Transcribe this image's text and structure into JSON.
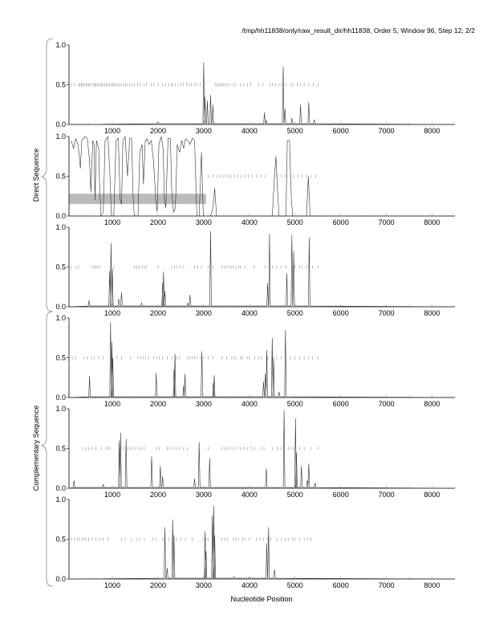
{
  "title": "/tmp/hh11838/only/raw_result_dir/hh11838, Order 5, Window 96, Step 12, 2/2",
  "group_labels": {
    "direct": "Direct Sequence",
    "complementary": "Complementary Sequence"
  },
  "chart_data": [
    {
      "type": "line",
      "xlim": [
        50,
        8500
      ],
      "ylim": [
        0,
        1
      ],
      "yticks": [
        "0.0",
        "0.5",
        "1.0"
      ],
      "xticks": [
        "1000",
        "2000",
        "3000",
        "4000",
        "5000",
        "6000",
        "7000",
        "8000"
      ],
      "peaks": [
        [
          1990,
          0.03
        ],
        [
          3000,
          0.78
        ],
        [
          3030,
          0.35
        ],
        [
          3080,
          0.3
        ],
        [
          3150,
          0.37
        ],
        [
          3200,
          0.25
        ],
        [
          4330,
          0.15
        ],
        [
          4370,
          0.05
        ],
        [
          4740,
          0.73
        ],
        [
          4780,
          0.2
        ],
        [
          4930,
          0.08
        ],
        [
          5120,
          0.25
        ],
        [
          5300,
          0.28
        ],
        [
          5420,
          0.06
        ]
      ],
      "orf_marks": [
        100,
        160,
        260,
        290,
        320,
        340,
        380,
        420,
        450,
        480,
        510,
        560,
        600,
        620,
        650,
        690,
        730,
        760,
        790,
        830,
        870,
        900,
        940,
        980,
        1010,
        1040,
        1080,
        1120,
        1160,
        1200,
        1250,
        1290,
        1330,
        1380,
        1430,
        1480,
        1550,
        1600,
        1700,
        1750,
        1850,
        1900,
        2000,
        2100,
        2170,
        2230,
        2290,
        2320,
        2380,
        2440,
        2500,
        2550,
        2620,
        2680,
        2730,
        2800,
        2850,
        2920,
        3250,
        3290,
        3330,
        3360,
        3400,
        3430,
        3470,
        3520,
        3580,
        3650,
        3700,
        3800,
        3870,
        3960,
        4030,
        4200,
        4300,
        4450,
        4500,
        4570,
        4650,
        4700,
        4800,
        4900,
        4950,
        5050,
        5120,
        5200,
        5300,
        5400,
        5500
      ]
    },
    {
      "type": "line",
      "xlim": [
        50,
        8500
      ],
      "ylim": [
        0,
        1
      ],
      "yticks": [
        "0.0",
        "0.5",
        "1.0"
      ],
      "xticks": [
        "1000",
        "2000",
        "3000",
        "4000",
        "5000",
        "6000",
        "7000",
        "8000"
      ],
      "highlight": {
        "x": [
          50,
          3050
        ],
        "y": [
          0.15,
          0.28
        ],
        "color": "#bbbbbb"
      },
      "points": [
        [
          100,
          0.95
        ],
        [
          150,
          0.85
        ],
        [
          200,
          0.97
        ],
        [
          250,
          0.9
        ],
        [
          300,
          0.6
        ],
        [
          330,
          0.95
        ],
        [
          400,
          1.0
        ],
        [
          450,
          0.98
        ],
        [
          500,
          0.7
        ],
        [
          530,
          0.3
        ],
        [
          570,
          0.95
        ],
        [
          600,
          0.9
        ],
        [
          620,
          0.2
        ],
        [
          650,
          0.95
        ],
        [
          700,
          0.85
        ],
        [
          720,
          0.4
        ],
        [
          750,
          0.0
        ],
        [
          800,
          0.05
        ],
        [
          840,
          0.95
        ],
        [
          900,
          1.0
        ],
        [
          940,
          0.6
        ],
        [
          980,
          0.0
        ],
        [
          1030,
          0.0
        ],
        [
          1080,
          0.95
        ],
        [
          1130,
          0.98
        ],
        [
          1170,
          0.2
        ],
        [
          1200,
          0.15
        ],
        [
          1230,
          0.95
        ],
        [
          1280,
          1.0
        ],
        [
          1330,
          0.5
        ],
        [
          1380,
          0.98
        ],
        [
          1420,
          0.98
        ],
        [
          1450,
          0.3
        ],
        [
          1480,
          0.0
        ],
        [
          1560,
          0.0
        ],
        [
          1600,
          0.8
        ],
        [
          1650,
          0.9
        ],
        [
          1680,
          0.4
        ],
        [
          1720,
          0.95
        ],
        [
          1760,
          0.97
        ],
        [
          1800,
          0.9
        ],
        [
          1850,
          0.95
        ],
        [
          1900,
          0.7
        ],
        [
          1950,
          0.2
        ],
        [
          1980,
          0.05
        ],
        [
          2020,
          0.9
        ],
        [
          2070,
          1.0
        ],
        [
          2110,
          0.85
        ],
        [
          2140,
          0.2
        ],
        [
          2170,
          0.1
        ],
        [
          2220,
          0.98
        ],
        [
          2270,
          0.97
        ],
        [
          2300,
          0.3
        ],
        [
          2340,
          0.05
        ],
        [
          2380,
          0.1
        ],
        [
          2420,
          0.9
        ],
        [
          2470,
          0.8
        ],
        [
          2520,
          0.95
        ],
        [
          2560,
          0.85
        ],
        [
          2600,
          0.97
        ],
        [
          2650,
          0.95
        ],
        [
          2700,
          0.9
        ],
        [
          2750,
          0.98
        ],
        [
          2800,
          0.95
        ],
        [
          2850,
          0.0
        ],
        [
          2900,
          0.0
        ],
        [
          2950,
          0.8
        ],
        [
          2990,
          0.0
        ],
        [
          3050,
          0.0
        ],
        [
          3150,
          0.0
        ],
        [
          3200,
          0.1
        ],
        [
          3240,
          0.35
        ],
        [
          3280,
          0.0
        ],
        [
          4500,
          0.0
        ],
        [
          4550,
          0.5
        ],
        [
          4580,
          0.75
        ],
        [
          4620,
          0.3
        ],
        [
          4650,
          0.0
        ],
        [
          4800,
          0.0
        ],
        [
          4830,
          0.95
        ],
        [
          4880,
          0.95
        ],
        [
          4920,
          0.2
        ],
        [
          4950,
          0.0
        ],
        [
          5250,
          0.0
        ],
        [
          5290,
          0.5
        ],
        [
          5330,
          0.0
        ],
        [
          8500,
          0.0
        ]
      ],
      "orf_marks": [
        3100,
        3200,
        3280,
        3350,
        3420,
        3480,
        3550,
        3600,
        3680,
        3750,
        3820,
        3900,
        3980,
        4060,
        4150,
        4250,
        4350,
        4600,
        4700,
        4780,
        4900,
        4970,
        5060,
        5150,
        5250,
        5350,
        5450
      ]
    },
    {
      "type": "line",
      "xlim": [
        50,
        8500
      ],
      "ylim": [
        0,
        1
      ],
      "yticks": [
        "0.0",
        "0.5",
        "1.0"
      ],
      "xticks": [
        "1000",
        "2000",
        "3000",
        "4000",
        "5000",
        "6000",
        "7000",
        "8000"
      ],
      "peaks": [
        [
          490,
          0.08
        ],
        [
          940,
          0.45
        ],
        [
          970,
          0.8
        ],
        [
          1000,
          0.48
        ],
        [
          1140,
          0.1
        ],
        [
          1200,
          0.18
        ],
        [
          1640,
          0.05
        ],
        [
          2100,
          0.3
        ],
        [
          2120,
          0.44
        ],
        [
          2150,
          0.2
        ],
        [
          2650,
          0.05
        ],
        [
          2700,
          0.15
        ],
        [
          3150,
          0.95
        ],
        [
          4400,
          0.3
        ],
        [
          4440,
          0.92
        ],
        [
          4820,
          0.42
        ],
        [
          4930,
          0.9
        ],
        [
          4970,
          0.7
        ],
        [
          5310,
          0.87
        ]
      ],
      "orf_marks": [
        100,
        200,
        260,
        560,
        600,
        640,
        680,
        720,
        1030,
        1480,
        1530,
        1580,
        1650,
        1700,
        1740,
        2000,
        2300,
        2360,
        2420,
        2480,
        2560,
        2800,
        2870,
        2950,
        3100,
        3200,
        3400,
        3460,
        3500,
        3560,
        3600,
        3640,
        3700,
        3760,
        3800,
        3900,
        4100,
        4350,
        4500,
        4600,
        4700,
        4800,
        5000,
        5100,
        5150,
        5250,
        5380,
        5500
      ]
    },
    {
      "type": "line",
      "xlim": [
        50,
        8500
      ],
      "ylim": [
        0,
        1
      ],
      "yticks": [
        "0.0",
        "0.5",
        "1.0"
      ],
      "xticks": [
        "1000",
        "2000",
        "3000",
        "4000",
        "5000",
        "6000",
        "7000",
        "8000"
      ],
      "peaks": [
        [
          500,
          0.27
        ],
        [
          960,
          0.95
        ],
        [
          990,
          0.7
        ],
        [
          1010,
          0.5
        ],
        [
          1960,
          0.31
        ],
        [
          2350,
          0.35
        ],
        [
          2370,
          0.55
        ],
        [
          2560,
          0.15
        ],
        [
          2590,
          0.3
        ],
        [
          2960,
          0.58
        ],
        [
          3210,
          0.18
        ],
        [
          3230,
          0.28
        ],
        [
          4310,
          0.2
        ],
        [
          4350,
          0.3
        ],
        [
          4380,
          0.6
        ],
        [
          4500,
          0.75
        ],
        [
          4530,
          0.5
        ],
        [
          4650,
          0.07
        ],
        [
          4790,
          0.85
        ]
      ],
      "orf_marks": [
        120,
        200,
        380,
        450,
        540,
        600,
        700,
        800,
        1100,
        1200,
        1400,
        1560,
        1620,
        1680,
        1730,
        1800,
        1900,
        1970,
        2030,
        2100,
        2200,
        2300,
        2400,
        2460,
        2650,
        2700,
        2750,
        2800,
        2850,
        2930,
        3000,
        3100,
        3200,
        3400,
        3500,
        3600,
        3650,
        3700,
        3800,
        3850,
        3950,
        4000,
        4120,
        4200,
        4260,
        4400,
        4500,
        4600,
        4700,
        4900,
        5000,
        5100,
        5200,
        5300,
        5380,
        5500
      ]
    },
    {
      "type": "line",
      "xlim": [
        50,
        8500
      ],
      "ylim": [
        0,
        1
      ],
      "yticks": [
        "0.0",
        "0.5",
        "1.0"
      ],
      "xticks": [
        "1000",
        "2000",
        "3000",
        "4000",
        "5000",
        "6000",
        "7000",
        "8000"
      ],
      "peaks": [
        [
          160,
          0.1
        ],
        [
          800,
          0.05
        ],
        [
          1150,
          0.6
        ],
        [
          1180,
          0.7
        ],
        [
          1300,
          0.62
        ],
        [
          1860,
          0.4
        ],
        [
          2050,
          0.28
        ],
        [
          2100,
          0.15
        ],
        [
          2800,
          0.12
        ],
        [
          2900,
          0.58
        ],
        [
          3130,
          0.38
        ],
        [
          4370,
          0.25
        ],
        [
          4760,
          0.98
        ],
        [
          5010,
          0.88
        ],
        [
          5030,
          0.45
        ],
        [
          5140,
          0.28
        ],
        [
          5270,
          0.1
        ],
        [
          5300,
          0.31
        ],
        [
          5440,
          0.07
        ]
      ],
      "orf_marks": [
        350,
        420,
        480,
        560,
        640,
        760,
        860,
        900,
        950,
        1250,
        1340,
        1400,
        1450,
        1510,
        1580,
        1640,
        1700,
        1960,
        2020,
        2200,
        2260,
        2330,
        2400,
        2460,
        2560,
        2640,
        3100,
        3400,
        3460,
        3520,
        3580,
        3650,
        3720,
        3800,
        3880,
        3950,
        4050,
        4120,
        4250,
        4320,
        4500,
        4620,
        4700,
        4850,
        4900,
        4960,
        5100,
        5200,
        5350,
        5500
      ]
    },
    {
      "type": "line",
      "xlim": [
        50,
        8500
      ],
      "ylim": [
        0,
        1
      ],
      "yticks": [
        "0.0",
        "0.5",
        "1.0"
      ],
      "xticks": [
        "1000",
        "2000",
        "3000",
        "4000",
        "5000",
        "6000",
        "7000",
        "8000"
      ],
      "peaks": [
        [
          2150,
          0.65
        ],
        [
          2200,
          0.14
        ],
        [
          2320,
          0.75
        ],
        [
          2350,
          0.55
        ],
        [
          3030,
          0.6
        ],
        [
          3050,
          0.35
        ],
        [
          3190,
          0.8
        ],
        [
          3220,
          0.92
        ],
        [
          3240,
          0.55
        ],
        [
          3660,
          0.03
        ],
        [
          4000,
          0.02
        ],
        [
          4380,
          0.45
        ],
        [
          4420,
          0.65
        ],
        [
          4550,
          0.12
        ]
      ],
      "orf_marks": [
        100,
        170,
        230,
        280,
        330,
        380,
        420,
        480,
        560,
        640,
        720,
        800,
        900,
        1200,
        1280,
        1420,
        1540,
        1600,
        1700,
        1880,
        1950,
        2100,
        2230,
        2400,
        2500,
        2600,
        2750,
        2980,
        3050,
        3100,
        3400,
        3460,
        3520,
        3650,
        3700,
        3760,
        3850,
        3900,
        4000,
        4150,
        4230,
        4300,
        4400,
        4470,
        4600,
        4700,
        4780,
        4850,
        4950,
        5000,
        5100,
        5200,
        5280,
        5350
      ]
    }
  ],
  "xlabel": "Nucleotide Position"
}
